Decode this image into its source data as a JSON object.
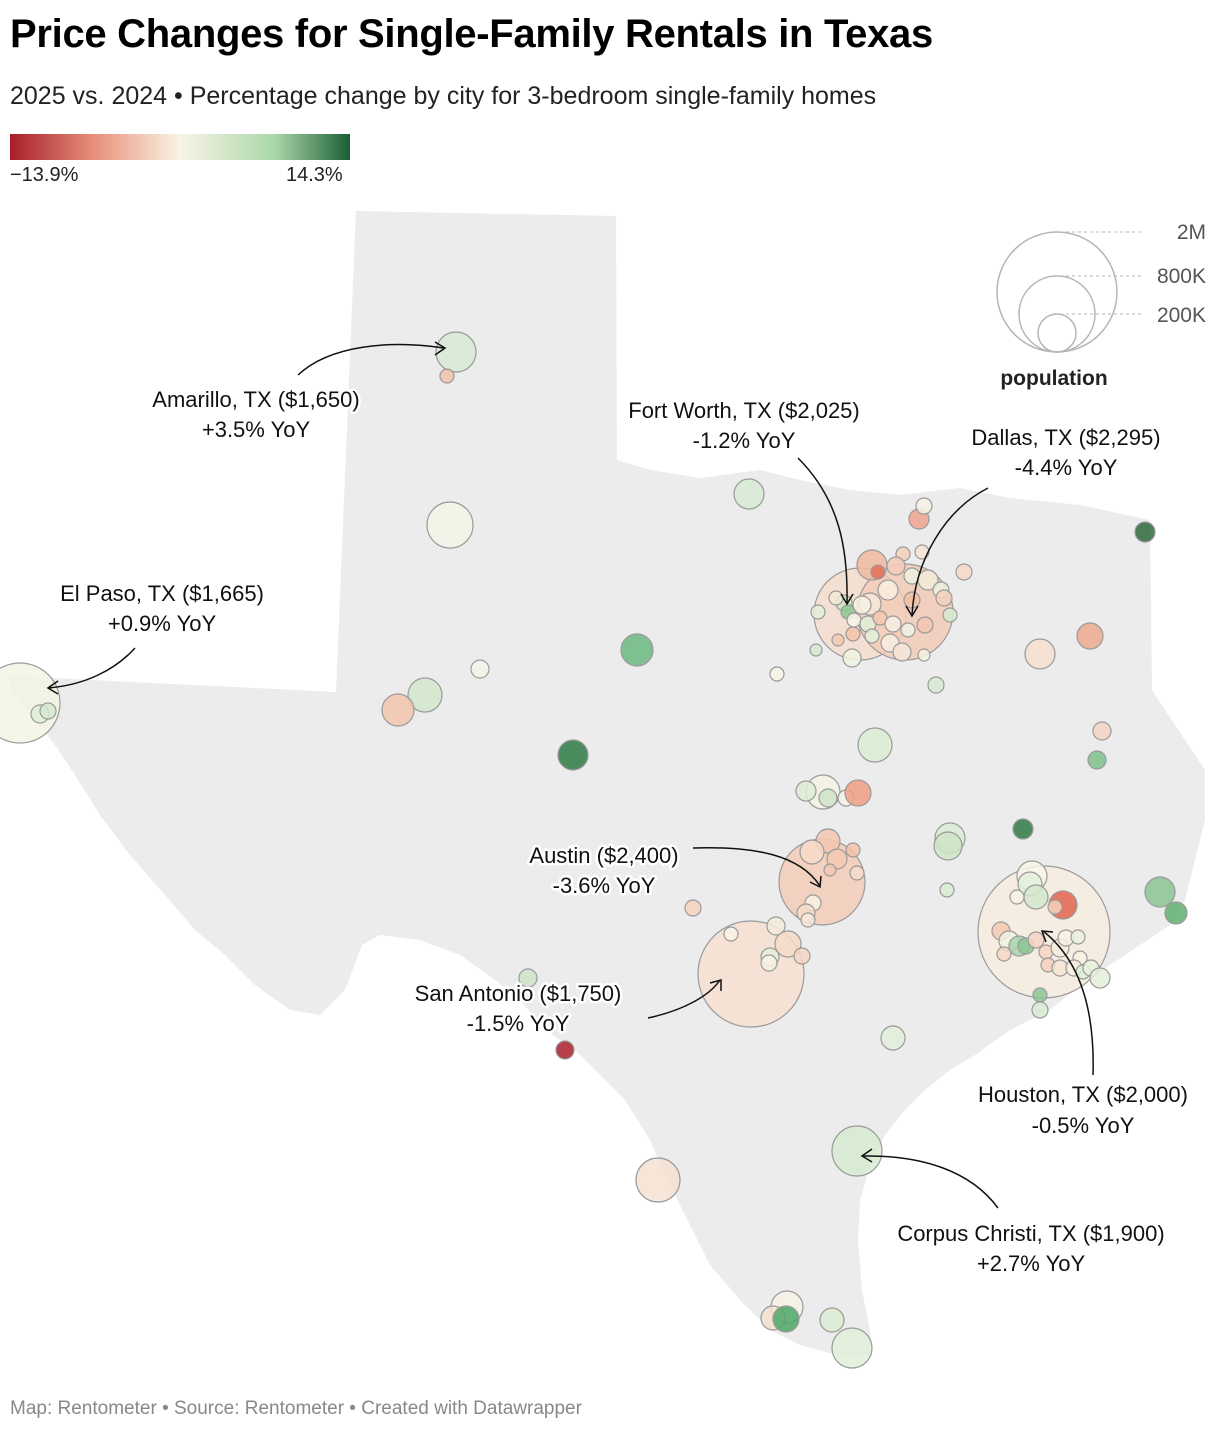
{
  "title": "Price Changes for Single-Family Rentals in Texas",
  "subtitle": "2025 vs. 2024 • Percentage change by city for 3-bedroom single-family homes",
  "color_legend": {
    "min_label": "−13.9%",
    "max_label": "14.3%",
    "min_color": "#a81e2b",
    "mid_color": "#f9f4e6",
    "max_color": "#1c5f34"
  },
  "size_legend": {
    "title": "population",
    "labels": [
      "2M",
      "800K",
      "200K"
    ]
  },
  "callouts": [
    {
      "id": "amarillo",
      "line1": "Amarillo, TX ($1,650)",
      "line2": "+3.5% YoY"
    },
    {
      "id": "fort-worth",
      "line1": "Fort Worth, TX ($2,025)",
      "line2": "-1.2% YoY"
    },
    {
      "id": "dallas",
      "line1": "Dallas, TX ($2,295)",
      "line2": "-4.4% YoY"
    },
    {
      "id": "el-paso",
      "line1": "El Paso, TX ($1,665)",
      "line2": "+0.9% YoY"
    },
    {
      "id": "austin",
      "line1": "Austin ($2,400)",
      "line2": "-3.6% YoY"
    },
    {
      "id": "san-antonio",
      "line1": "San Antonio ($1,750)",
      "line2": "-1.5% YoY"
    },
    {
      "id": "houston",
      "line1": "Houston, TX ($2,000)",
      "line2": "-0.5% YoY"
    },
    {
      "id": "corpus-christi",
      "line1": "Corpus Christi, TX ($1,900)",
      "line2": "+2.7% YoY"
    }
  ],
  "cities": [
    {
      "name": "Amarillo, TX",
      "rent": 1650,
      "yoy": 3.5
    },
    {
      "name": "Fort Worth, TX",
      "rent": 2025,
      "yoy": -1.2
    },
    {
      "name": "Dallas, TX",
      "rent": 2295,
      "yoy": -4.4
    },
    {
      "name": "El Paso, TX",
      "rent": 1665,
      "yoy": 0.9
    },
    {
      "name": "Austin",
      "rent": 2400,
      "yoy": -3.6
    },
    {
      "name": "San Antonio",
      "rent": 1750,
      "yoy": -1.5
    },
    {
      "name": "Houston, TX",
      "rent": 2000,
      "yoy": -0.5
    },
    {
      "name": "Corpus Christi, TX",
      "rent": 1900,
      "yoy": 2.7
    }
  ],
  "footer": "Map: Rentometer • Source: Rentometer • Created with Datawrapper"
}
